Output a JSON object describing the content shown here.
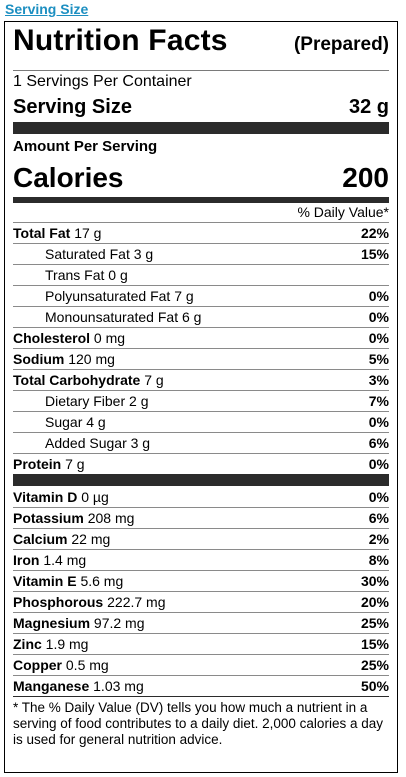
{
  "link": {
    "label": "Serving Size"
  },
  "label": {
    "title": "Nutrition Facts",
    "prepared": "(Prepared)",
    "servings_per_container": "1 Servings Per Container",
    "serving_size_label": "Serving Size",
    "serving_size_value": "32 g",
    "amount_per_serving": "Amount Per Serving",
    "calories_label": "Calories",
    "calories_value": "200",
    "dv_header": "% Daily Value*"
  },
  "nutrients": [
    {
      "name": "Total Fat",
      "amount": "17 g",
      "dv": "22%",
      "bold": true,
      "sub": false
    },
    {
      "name": "Saturated Fat",
      "amount": "3 g",
      "dv": "15%",
      "bold": false,
      "sub": true
    },
    {
      "name": "Trans Fat",
      "amount": "0 g",
      "dv": "",
      "bold": false,
      "sub": true
    },
    {
      "name": "Polyunsaturated Fat",
      "amount": "7 g",
      "dv": "0%",
      "bold": false,
      "sub": true
    },
    {
      "name": "Monounsaturated Fat",
      "amount": "6 g",
      "dv": "0%",
      "bold": false,
      "sub": true
    },
    {
      "name": "Cholesterol",
      "amount": "0 mg",
      "dv": "0%",
      "bold": true,
      "sub": false
    },
    {
      "name": "Sodium",
      "amount": "120 mg",
      "dv": "5%",
      "bold": true,
      "sub": false
    },
    {
      "name": "Total Carbohydrate",
      "amount": "7 g",
      "dv": "3%",
      "bold": true,
      "sub": false
    },
    {
      "name": "Dietary Fiber",
      "amount": "2 g",
      "dv": "7%",
      "bold": false,
      "sub": true
    },
    {
      "name": "Sugar",
      "amount": "4 g",
      "dv": "0%",
      "bold": false,
      "sub": true
    },
    {
      "name": "Added Sugar",
      "amount": "3 g",
      "dv": "6%",
      "bold": false,
      "sub": true
    },
    {
      "name": "Protein",
      "amount": "7 g",
      "dv": "0%",
      "bold": true,
      "sub": false
    }
  ],
  "vitamins": [
    {
      "name": "Vitamin D",
      "amount": "0 µg",
      "dv": "0%"
    },
    {
      "name": "Potassium",
      "amount": "208 mg",
      "dv": "6%"
    },
    {
      "name": "Calcium",
      "amount": "22 mg",
      "dv": "2%"
    },
    {
      "name": "Iron",
      "amount": "1.4 mg",
      "dv": "8%"
    },
    {
      "name": "Vitamin E",
      "amount": "5.6 mg",
      "dv": "30%"
    },
    {
      "name": "Phosphorous",
      "amount": "222.7 mg",
      "dv": "20%"
    },
    {
      "name": "Magnesium",
      "amount": "97.2 mg",
      "dv": "25%"
    },
    {
      "name": "Zinc",
      "amount": "1.9 mg",
      "dv": "15%"
    },
    {
      "name": "Copper",
      "amount": "0.5 mg",
      "dv": "25%"
    },
    {
      "name": "Manganese",
      "amount": "1.03 mg",
      "dv": "50%"
    }
  ],
  "footnote": "* The % Daily Value (DV) tells you how much a nutrient in a serving of food contributes to a daily diet. 2,000 calories a day is used for general nutrition advice."
}
